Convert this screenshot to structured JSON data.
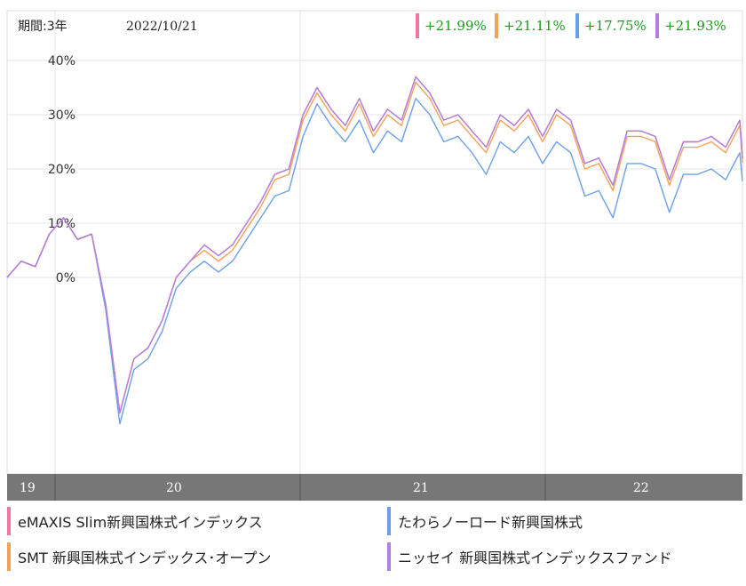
{
  "header": {
    "period_label": "期間:3年",
    "date": "2022/10/21"
  },
  "returns": [
    {
      "value": "+21.99%",
      "color": "#f078a0"
    },
    {
      "value": "+21.11%",
      "color": "#f5a055"
    },
    {
      "value": "+17.75%",
      "color": "#6aa0e8"
    },
    {
      "value": "+21.93%",
      "color": "#b080e0"
    }
  ],
  "legend": [
    {
      "label": "eMAXIS Slim新興国株式インデックス",
      "color": "#f078a0"
    },
    {
      "label": "たわらノーロード新興国株式",
      "color": "#6aa0e8"
    },
    {
      "label": "SMT 新興国株式インデックス･オープン",
      "color": "#f5a055"
    },
    {
      "label": "ニッセイ 新興国株式インデックスファンド",
      "color": "#b080e0"
    }
  ],
  "chart_data": {
    "type": "line",
    "x_unit": "date",
    "x": [
      "2019-10-21",
      "2019-11-11",
      "2019-12-02",
      "2019-12-23",
      "2020-01-13",
      "2020-02-03",
      "2020-02-24",
      "2020-03-16",
      "2020-04-06",
      "2020-04-27",
      "2020-05-18",
      "2020-06-08",
      "2020-06-29",
      "2020-07-20",
      "2020-08-10",
      "2020-08-31",
      "2020-09-21",
      "2020-10-12",
      "2020-11-02",
      "2020-11-23",
      "2020-12-14",
      "2021-01-04",
      "2021-01-25",
      "2021-02-15",
      "2021-03-08",
      "2021-03-29",
      "2021-04-19",
      "2021-05-10",
      "2021-05-31",
      "2021-06-21",
      "2021-07-12",
      "2021-08-02",
      "2021-08-23",
      "2021-09-13",
      "2021-10-04",
      "2021-10-25",
      "2021-11-15",
      "2021-12-06",
      "2021-12-27",
      "2022-01-17",
      "2022-02-07",
      "2022-02-28",
      "2022-03-21",
      "2022-04-11",
      "2022-05-02",
      "2022-05-23",
      "2022-06-13",
      "2022-07-04",
      "2022-07-25",
      "2022-08-15",
      "2022-09-05",
      "2022-09-26",
      "2022-10-17",
      "2022-10-21"
    ],
    "series": [
      {
        "values": [
          0,
          3,
          2,
          8,
          11,
          7,
          8,
          -5,
          -25,
          -15,
          -13,
          -8,
          0,
          3,
          6,
          4,
          6,
          10,
          14,
          19,
          20,
          30,
          35,
          31,
          28,
          33,
          27,
          31,
          29,
          37,
          34,
          29,
          30,
          27,
          24,
          30,
          28,
          31,
          26,
          31,
          29,
          21,
          22,
          17,
          27,
          27,
          26,
          18,
          25,
          25,
          26,
          24,
          29,
          22
        ]
      },
      {
        "values": [
          0,
          3,
          2,
          8,
          11,
          7,
          8,
          -5,
          -25,
          -15,
          -13,
          -8,
          0,
          3,
          5,
          3,
          5,
          9,
          13,
          18,
          19,
          29,
          34,
          30,
          27,
          32,
          26,
          30,
          28,
          36,
          33,
          28,
          29,
          26,
          23,
          29,
          27,
          30,
          25,
          30,
          28,
          20,
          21,
          16,
          26,
          26,
          25,
          17,
          24,
          24,
          25,
          23,
          28,
          21.11
        ]
      },
      {
        "values": [
          0,
          3,
          2,
          8,
          11,
          7,
          8,
          -6,
          -27,
          -17,
          -15,
          -10,
          -2,
          1,
          3,
          1,
          3,
          7,
          11,
          15,
          16,
          26,
          32,
          28,
          25,
          29,
          23,
          27,
          25,
          33,
          30,
          25,
          26,
          23,
          19,
          25,
          23,
          26,
          21,
          25,
          23,
          15,
          16,
          11,
          21,
          21,
          20,
          12,
          19,
          19,
          20,
          18,
          23,
          17.75
        ]
      },
      {
        "values": [
          0,
          3,
          2,
          8,
          11,
          7,
          8,
          -5,
          -25,
          -15,
          -13,
          -8,
          0,
          3,
          6,
          4,
          6,
          10,
          14,
          19,
          20,
          30,
          35,
          31,
          28,
          33,
          27,
          31,
          29,
          37,
          34,
          29,
          30,
          27,
          24,
          30,
          28,
          31,
          26,
          31,
          29,
          21,
          22,
          17,
          27,
          27,
          26,
          18,
          25,
          25,
          26,
          24,
          29,
          21.93
        ]
      }
    ],
    "colors": [
      "#f078a0",
      "#f5a055",
      "#6aa0e8",
      "#b080e0"
    ],
    "y_ticks": [
      "40%",
      "30%",
      "20%",
      "10%",
      "0%"
    ],
    "x_ticks": [
      "19",
      "20",
      "21",
      "22"
    ],
    "ylim": [
      -40,
      45
    ],
    "grid": true
  }
}
